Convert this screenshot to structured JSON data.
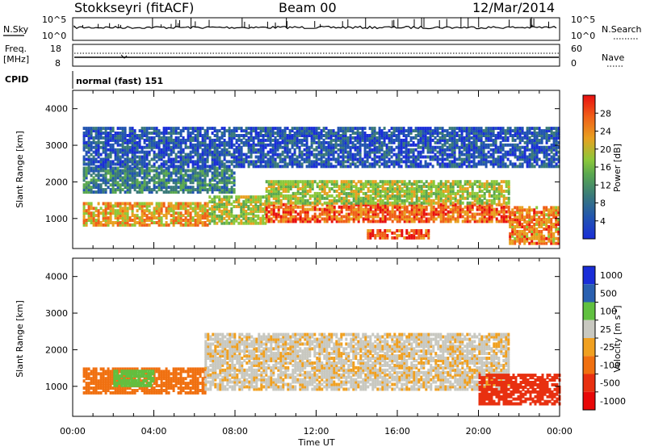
{
  "header": {
    "station": "Stokkseyri (fitACF)",
    "beam": "Beam 00",
    "date": "12/Mar/2014"
  },
  "noise_panel": {
    "left_label": "N.Sky",
    "right_label": "N.Search",
    "left_ticks": [
      "10^5",
      "10^0"
    ],
    "right_ticks": [
      "10^5",
      "10^0"
    ]
  },
  "freq_panel": {
    "left_label_1": "Freq.",
    "left_label_2": "[MHz]",
    "right_label": "Nave",
    "left_ticks": [
      "18",
      "8"
    ],
    "right_ticks": [
      "60",
      "0"
    ]
  },
  "cpid": {
    "label": "CPID",
    "mode": "normal (fast) 151"
  },
  "x_axis": {
    "label": "Time UT",
    "ticks": [
      "00:00",
      "04:00",
      "08:00",
      "12:00",
      "16:00",
      "20:00",
      "00:00"
    ]
  },
  "power_panel": {
    "ylabel": "Slant Range [km]",
    "yticks": [
      "1000",
      "2000",
      "3000",
      "4000"
    ],
    "colorbar_label": "Power [dB]",
    "colorbar_ticks": [
      "4",
      "8",
      "12",
      "16",
      "20",
      "24",
      "28"
    ],
    "colors": [
      "#1a2ed8",
      "#2255b0",
      "#3a7a7a",
      "#5aa850",
      "#8cc83a",
      "#e8a020",
      "#f06018",
      "#e81010"
    ]
  },
  "velocity_panel": {
    "ylabel": "Slant Range [km]",
    "yticks": [
      "1000",
      "2000",
      "3000",
      "4000"
    ],
    "colorbar_label": "Velocity [m s",
    "colorbar_exp": "-1",
    "colorbar_label_end": "]",
    "colorbar_ticks": [
      "1000",
      "500",
      "100",
      "25",
      "-25",
      "-100",
      "-500",
      "-1000"
    ],
    "colors": [
      "#1a2ed8",
      "#2a60b0",
      "#60c040",
      "#c8c8c0",
      "#f0a020",
      "#f07010",
      "#e83010",
      "#e80808"
    ]
  },
  "chart_data": {
    "type": "heatmap",
    "x_range_hours": [
      0,
      24
    ],
    "y_range_km": [
      180,
      4500
    ],
    "power_bands": [
      {
        "t0": 0.5,
        "t1": 6.7,
        "r0": 800,
        "r1": 1400,
        "value_db": 22
      },
      {
        "t0": 6.7,
        "t1": 9.5,
        "r0": 850,
        "r1": 1600,
        "value_db": 18
      },
      {
        "t0": 9.5,
        "t1": 21.5,
        "r0": 900,
        "r1": 1400,
        "value_db": 26
      },
      {
        "t0": 14.5,
        "t1": 17.5,
        "r0": 450,
        "r1": 650,
        "value_db": 27
      },
      {
        "t0": 21.5,
        "t1": 24,
        "r0": 300,
        "r1": 1300,
        "value_db": 24
      },
      {
        "t0": 0.5,
        "t1": 8,
        "r0": 1700,
        "r1": 2400,
        "value_db": 10
      },
      {
        "t0": 9.5,
        "t1": 21.5,
        "r0": 1400,
        "r1": 2000,
        "value_db": 18
      },
      {
        "t0": 0.5,
        "t1": 24,
        "r0": 2400,
        "r1": 3500,
        "value_db": 6
      }
    ],
    "velocity_bands": [
      {
        "t0": 0.5,
        "t1": 6.5,
        "r0": 800,
        "r1": 1500,
        "value_ms": -150
      },
      {
        "t0": 2,
        "t1": 4,
        "r0": 1000,
        "r1": 1400,
        "value_ms": 150
      },
      {
        "t0": 6.5,
        "t1": 21.5,
        "r0": 900,
        "r1": 2400,
        "value_ms": 0
      },
      {
        "t0": 20,
        "t1": 24,
        "r0": 500,
        "r1": 1300,
        "value_ms": -600
      }
    ]
  }
}
